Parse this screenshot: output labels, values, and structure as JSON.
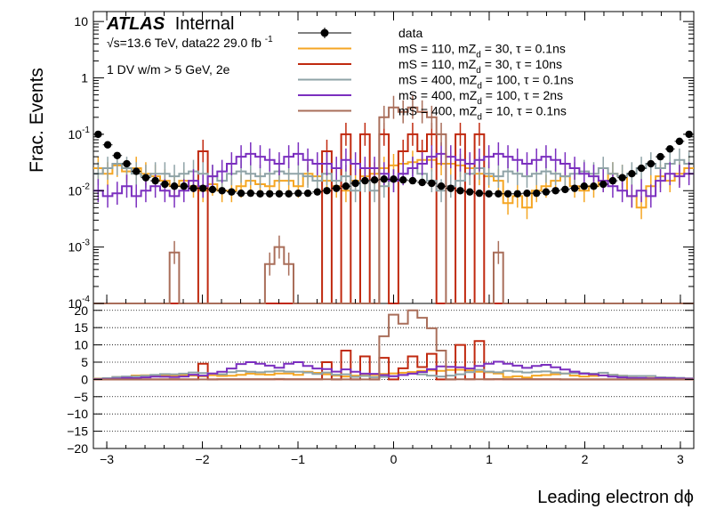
{
  "chart_data": {
    "type": "line",
    "experiment": "ATLAS",
    "experiment_tag": "Internal",
    "energy_line": "√s=13.6 TeV, data22 29.0 fb",
    "energy_sup": "-1",
    "selection": "1 DV w/m > 5 GeV, 2e",
    "xlabel": "Leading electron dϕ",
    "ylabel": "Frac. Events",
    "xlim": [
      -3.14,
      3.14
    ],
    "top_panel": {
      "yscale": "log",
      "ylim": [
        0.0001,
        15
      ],
      "yticks": [
        {
          "base": "10",
          "exp": "-4",
          "v": 0.0001
        },
        {
          "base": "10",
          "exp": "-3",
          "v": 0.001
        },
        {
          "base": "10",
          "exp": "-2",
          "v": 0.01
        },
        {
          "base": "10",
          "exp": "-1",
          "v": 0.1
        },
        {
          "base": "1",
          "exp": "",
          "v": 1
        },
        {
          "base": "10",
          "exp": "",
          "v": 10
        }
      ]
    },
    "ratio_panel": {
      "ylim": [
        -20,
        22
      ],
      "yticks": [
        "20",
        "15",
        "10",
        "5",
        "0",
        "−5",
        "−10",
        "−15",
        "−20"
      ],
      "grid": true
    },
    "xticks": [
      "−3",
      "−2",
      "−1",
      "0",
      "1",
      "2",
      "3"
    ],
    "legend": {
      "placement": "top-center",
      "entries": [
        {
          "pre": "data",
          "mid": "",
          "sub": "",
          "post": ""
        },
        {
          "pre": "mS = 110, mZ",
          "sub": "d",
          "post": " = 30, τ = 0.1ns"
        },
        {
          "pre": "mS = 110, mZ",
          "sub": "d",
          "post": " = 30, τ = 10ns"
        },
        {
          "pre": "mS = 400, mZ",
          "sub": "d",
          "post": " = 100, τ = 0.1ns"
        },
        {
          "pre": "mS = 400, mZ",
          "sub": "d",
          "post": " = 100, τ = 2ns"
        },
        {
          "pre": "mS = 400, mZ",
          "sub": "d",
          "post": " = 10, τ = 0.1ns"
        }
      ]
    },
    "colors": {
      "data": "#000000",
      "s1": "#f5a623",
      "s2": "#c0290f",
      "s3": "#8fa3a7",
      "s4": "#7b2fbf",
      "s5": "#a96e5a"
    },
    "bins": 63,
    "data_values": [
      0.1,
      0.065,
      0.042,
      0.03,
      0.022,
      0.017,
      0.015,
      0.013,
      0.012,
      0.012,
      0.011,
      0.011,
      0.0105,
      0.01,
      0.0095,
      0.009,
      0.009,
      0.0088,
      0.0088,
      0.0088,
      0.0088,
      0.009,
      0.009,
      0.0095,
      0.01,
      0.011,
      0.012,
      0.0135,
      0.015,
      0.0155,
      0.016,
      0.016,
      0.0155,
      0.015,
      0.014,
      0.0135,
      0.012,
      0.011,
      0.01,
      0.0095,
      0.009,
      0.0088,
      0.0088,
      0.0088,
      0.0088,
      0.009,
      0.009,
      0.0095,
      0.01,
      0.0105,
      0.011,
      0.012,
      0.012,
      0.013,
      0.015,
      0.017,
      0.02,
      0.025,
      0.03,
      0.04,
      0.055,
      0.075,
      0.1
    ],
    "series": [
      {
        "key": "s1",
        "values": [
          0.025,
          0.02,
          0.028,
          0.022,
          0.025,
          0.02,
          0.018,
          0.015,
          0.012,
          0.015,
          0.012,
          0.01,
          0.013,
          0.01,
          0.01,
          0.012,
          0.015,
          0.013,
          0.012,
          0.015,
          0.015,
          0.012,
          0.02,
          0.018,
          0.015,
          0.012,
          0.01,
          0.015,
          0.018,
          0.02,
          0.025,
          0.028,
          0.03,
          0.032,
          0.035,
          0.035,
          0.03,
          0.03,
          0.028,
          0.025,
          0.02,
          0.018,
          0.015,
          0.006,
          0.008,
          0.005,
          0.01,
          0.012,
          0.015,
          0.018,
          0.012,
          0.01,
          0.012,
          0.015,
          0.02,
          0.018,
          0.008,
          0.005,
          0.012,
          0.018,
          0.015,
          0.02,
          0.025
        ]
      },
      {
        "key": "s2",
        "values": [
          8e-05,
          8e-05,
          8e-05,
          8e-05,
          8e-05,
          8e-05,
          8e-05,
          8e-05,
          8e-05,
          8e-05,
          8e-05,
          0.05,
          8e-05,
          8e-05,
          8e-05,
          8e-05,
          8e-05,
          8e-05,
          8e-05,
          8e-05,
          8e-05,
          8e-05,
          8e-05,
          8e-05,
          0.05,
          8e-05,
          0.1,
          8e-05,
          0.1,
          8e-05,
          0.1,
          8e-05,
          0.05,
          0.1,
          0.05,
          0.1,
          8e-05,
          8e-05,
          0.1,
          8e-05,
          0.1,
          8e-05,
          8e-05,
          8e-05,
          8e-05,
          8e-05,
          8e-05,
          8e-05,
          8e-05,
          8e-05,
          8e-05,
          8e-05,
          8e-05,
          8e-05,
          8e-05,
          8e-05,
          8e-05,
          8e-05,
          8e-05,
          8e-05,
          8e-05,
          8e-05,
          8e-05
        ]
      },
      {
        "key": "s3",
        "values": [
          0.02,
          0.025,
          0.03,
          0.025,
          0.02,
          0.018,
          0.02,
          0.02,
          0.018,
          0.02,
          0.022,
          0.02,
          0.018,
          0.015,
          0.02,
          0.022,
          0.02,
          0.018,
          0.02,
          0.022,
          0.02,
          0.02,
          0.018,
          0.015,
          0.02,
          0.015,
          0.018,
          0.01,
          0.015,
          0.01,
          0.012,
          0.015,
          0.02,
          0.025,
          0.02,
          0.015,
          0.01,
          0.012,
          0.015,
          0.02,
          0.025,
          0.02,
          0.018,
          0.022,
          0.02,
          0.018,
          0.02,
          0.022,
          0.02,
          0.018,
          0.02,
          0.022,
          0.02,
          0.025,
          0.02,
          0.018,
          0.02,
          0.025,
          0.03,
          0.025,
          0.03,
          0.035,
          0.03
        ]
      },
      {
        "key": "s4",
        "values": [
          0.01,
          0.008,
          0.009,
          0.012,
          0.008,
          0.01,
          0.012,
          0.01,
          0.008,
          0.01,
          0.015,
          0.012,
          0.018,
          0.022,
          0.03,
          0.04,
          0.045,
          0.04,
          0.035,
          0.03,
          0.04,
          0.045,
          0.035,
          0.03,
          0.03,
          0.025,
          0.035,
          0.03,
          0.025,
          0.025,
          0.02,
          0.015,
          0.02,
          0.025,
          0.03,
          0.04,
          0.045,
          0.04,
          0.035,
          0.03,
          0.035,
          0.04,
          0.045,
          0.04,
          0.035,
          0.03,
          0.035,
          0.04,
          0.035,
          0.03,
          0.025,
          0.02,
          0.018,
          0.015,
          0.012,
          0.01,
          0.008,
          0.01,
          0.008,
          0.015,
          0.02,
          0.018,
          0.02
        ]
      },
      {
        "key": "s5",
        "values": [
          8e-05,
          8e-05,
          8e-05,
          8e-05,
          8e-05,
          8e-05,
          8e-05,
          8e-05,
          0.0008,
          8e-05,
          8e-05,
          8e-05,
          8e-05,
          8e-05,
          8e-05,
          8e-05,
          8e-05,
          8e-05,
          0.0005,
          0.001,
          0.0005,
          8e-05,
          8e-05,
          8e-05,
          8e-05,
          8e-05,
          8e-05,
          8e-05,
          8e-05,
          8e-05,
          0.2,
          0.3,
          0.25,
          0.3,
          0.25,
          0.2,
          0.1,
          8e-05,
          8e-05,
          8e-05,
          8e-05,
          8e-05,
          0.0008,
          8e-05,
          8e-05,
          8e-05,
          8e-05,
          8e-05,
          8e-05,
          8e-05,
          8e-05,
          8e-05,
          8e-05,
          8e-05,
          8e-05,
          8e-05,
          8e-05,
          8e-05,
          8e-05,
          8e-05,
          8e-05,
          8e-05,
          8e-05
        ]
      }
    ]
  }
}
